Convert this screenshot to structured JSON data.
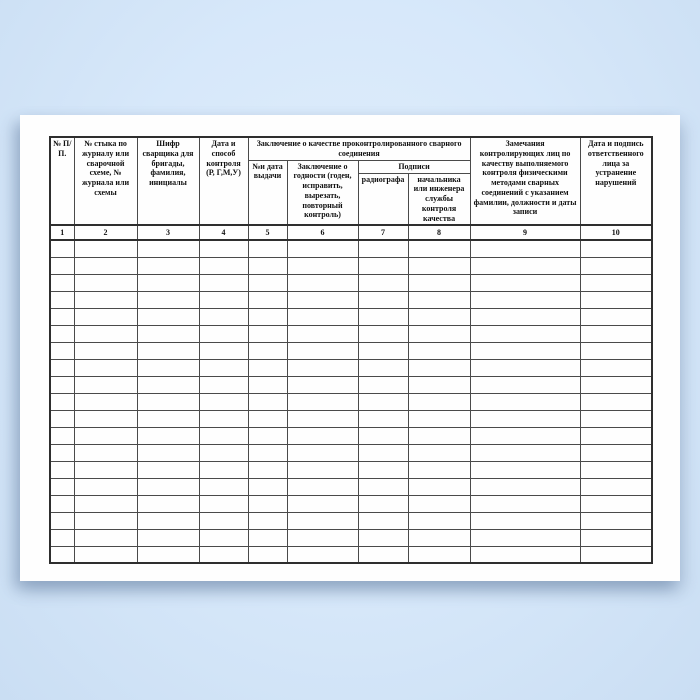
{
  "scene": {
    "background_color": "#d7e8fa",
    "paper_color": "#fefefe",
    "line_color": "#4a4a4a"
  },
  "table": {
    "group_headers": {
      "conclusion": "Заключение о качестве проконтролированного сварного соединения",
      "signatures": "Подписи"
    },
    "columns": [
      {
        "number": "1",
        "label": "№ П/П."
      },
      {
        "number": "2",
        "label": "№ стыка по журналу или сварочной схеме, № журнала или схемы"
      },
      {
        "number": "3",
        "label": "Шифр сварщика для бригады, фамилия, инициалы"
      },
      {
        "number": "4",
        "label": "Дата и способ контроля (Р, Г,М,У)"
      },
      {
        "number": "5",
        "label": "№и дата выдачи"
      },
      {
        "number": "6",
        "label": "Заключение о годности (годен, исправить, вырезать, повторный контроль)"
      },
      {
        "number": "7",
        "label": "радиографа"
      },
      {
        "number": "8",
        "label": "начальника или инженера службы контроля качества"
      },
      {
        "number": "9",
        "label": "Замечания контролирующих лиц по качеству выполняемого контроля физическими методами сварных соединений с указанием фамилии, должности и даты записи"
      },
      {
        "number": "10",
        "label": "Дата и подпись ответственного лица за устранение нарушений"
      }
    ],
    "empty_row_count": 19
  }
}
